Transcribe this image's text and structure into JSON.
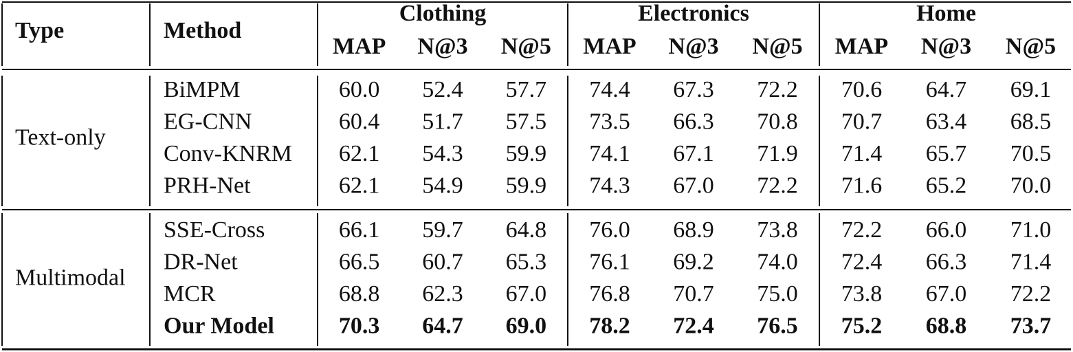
{
  "table": {
    "header": {
      "type": "Type",
      "method": "Method",
      "groups": [
        {
          "name": "Clothing",
          "metrics": [
            "MAP",
            "N@3",
            "N@5"
          ]
        },
        {
          "name": "Electronics",
          "metrics": [
            "MAP",
            "N@3",
            "N@5"
          ]
        },
        {
          "name": "Home",
          "metrics": [
            "MAP",
            "N@3",
            "N@5"
          ]
        }
      ]
    },
    "sections": [
      {
        "type": "Text-only",
        "rows": [
          {
            "method": "BiMPM",
            "values": [
              "60.0",
              "52.4",
              "57.7",
              "74.4",
              "67.3",
              "72.2",
              "70.6",
              "64.7",
              "69.1"
            ]
          },
          {
            "method": "EG-CNN",
            "values": [
              "60.4",
              "51.7",
              "57.5",
              "73.5",
              "66.3",
              "70.8",
              "70.7",
              "63.4",
              "68.5"
            ]
          },
          {
            "method": "Conv-KNRM",
            "values": [
              "62.1",
              "54.3",
              "59.9",
              "74.1",
              "67.1",
              "71.9",
              "71.4",
              "65.7",
              "70.5"
            ]
          },
          {
            "method": "PRH-Net",
            "values": [
              "62.1",
              "54.9",
              "59.9",
              "74.3",
              "67.0",
              "72.2",
              "71.6",
              "65.2",
              "70.0"
            ]
          }
        ]
      },
      {
        "type": "Multimodal",
        "rows": [
          {
            "method": "SSE-Cross",
            "values": [
              "66.1",
              "59.7",
              "64.8",
              "76.0",
              "68.9",
              "73.8",
              "72.2",
              "66.0",
              "71.0"
            ]
          },
          {
            "method": "DR-Net",
            "values": [
              "66.5",
              "60.7",
              "65.3",
              "76.1",
              "69.2",
              "74.0",
              "72.4",
              "66.3",
              "71.4"
            ]
          },
          {
            "method": "MCR",
            "values": [
              "68.8",
              "62.3",
              "67.0",
              "76.8",
              "70.7",
              "75.0",
              "73.8",
              "67.0",
              "72.2"
            ]
          },
          {
            "method": "Our Model",
            "values": [
              "70.3",
              "64.7",
              "69.0",
              "78.2",
              "72.4",
              "76.5",
              "75.2",
              "68.8",
              "73.7"
            ]
          }
        ]
      }
    ]
  }
}
